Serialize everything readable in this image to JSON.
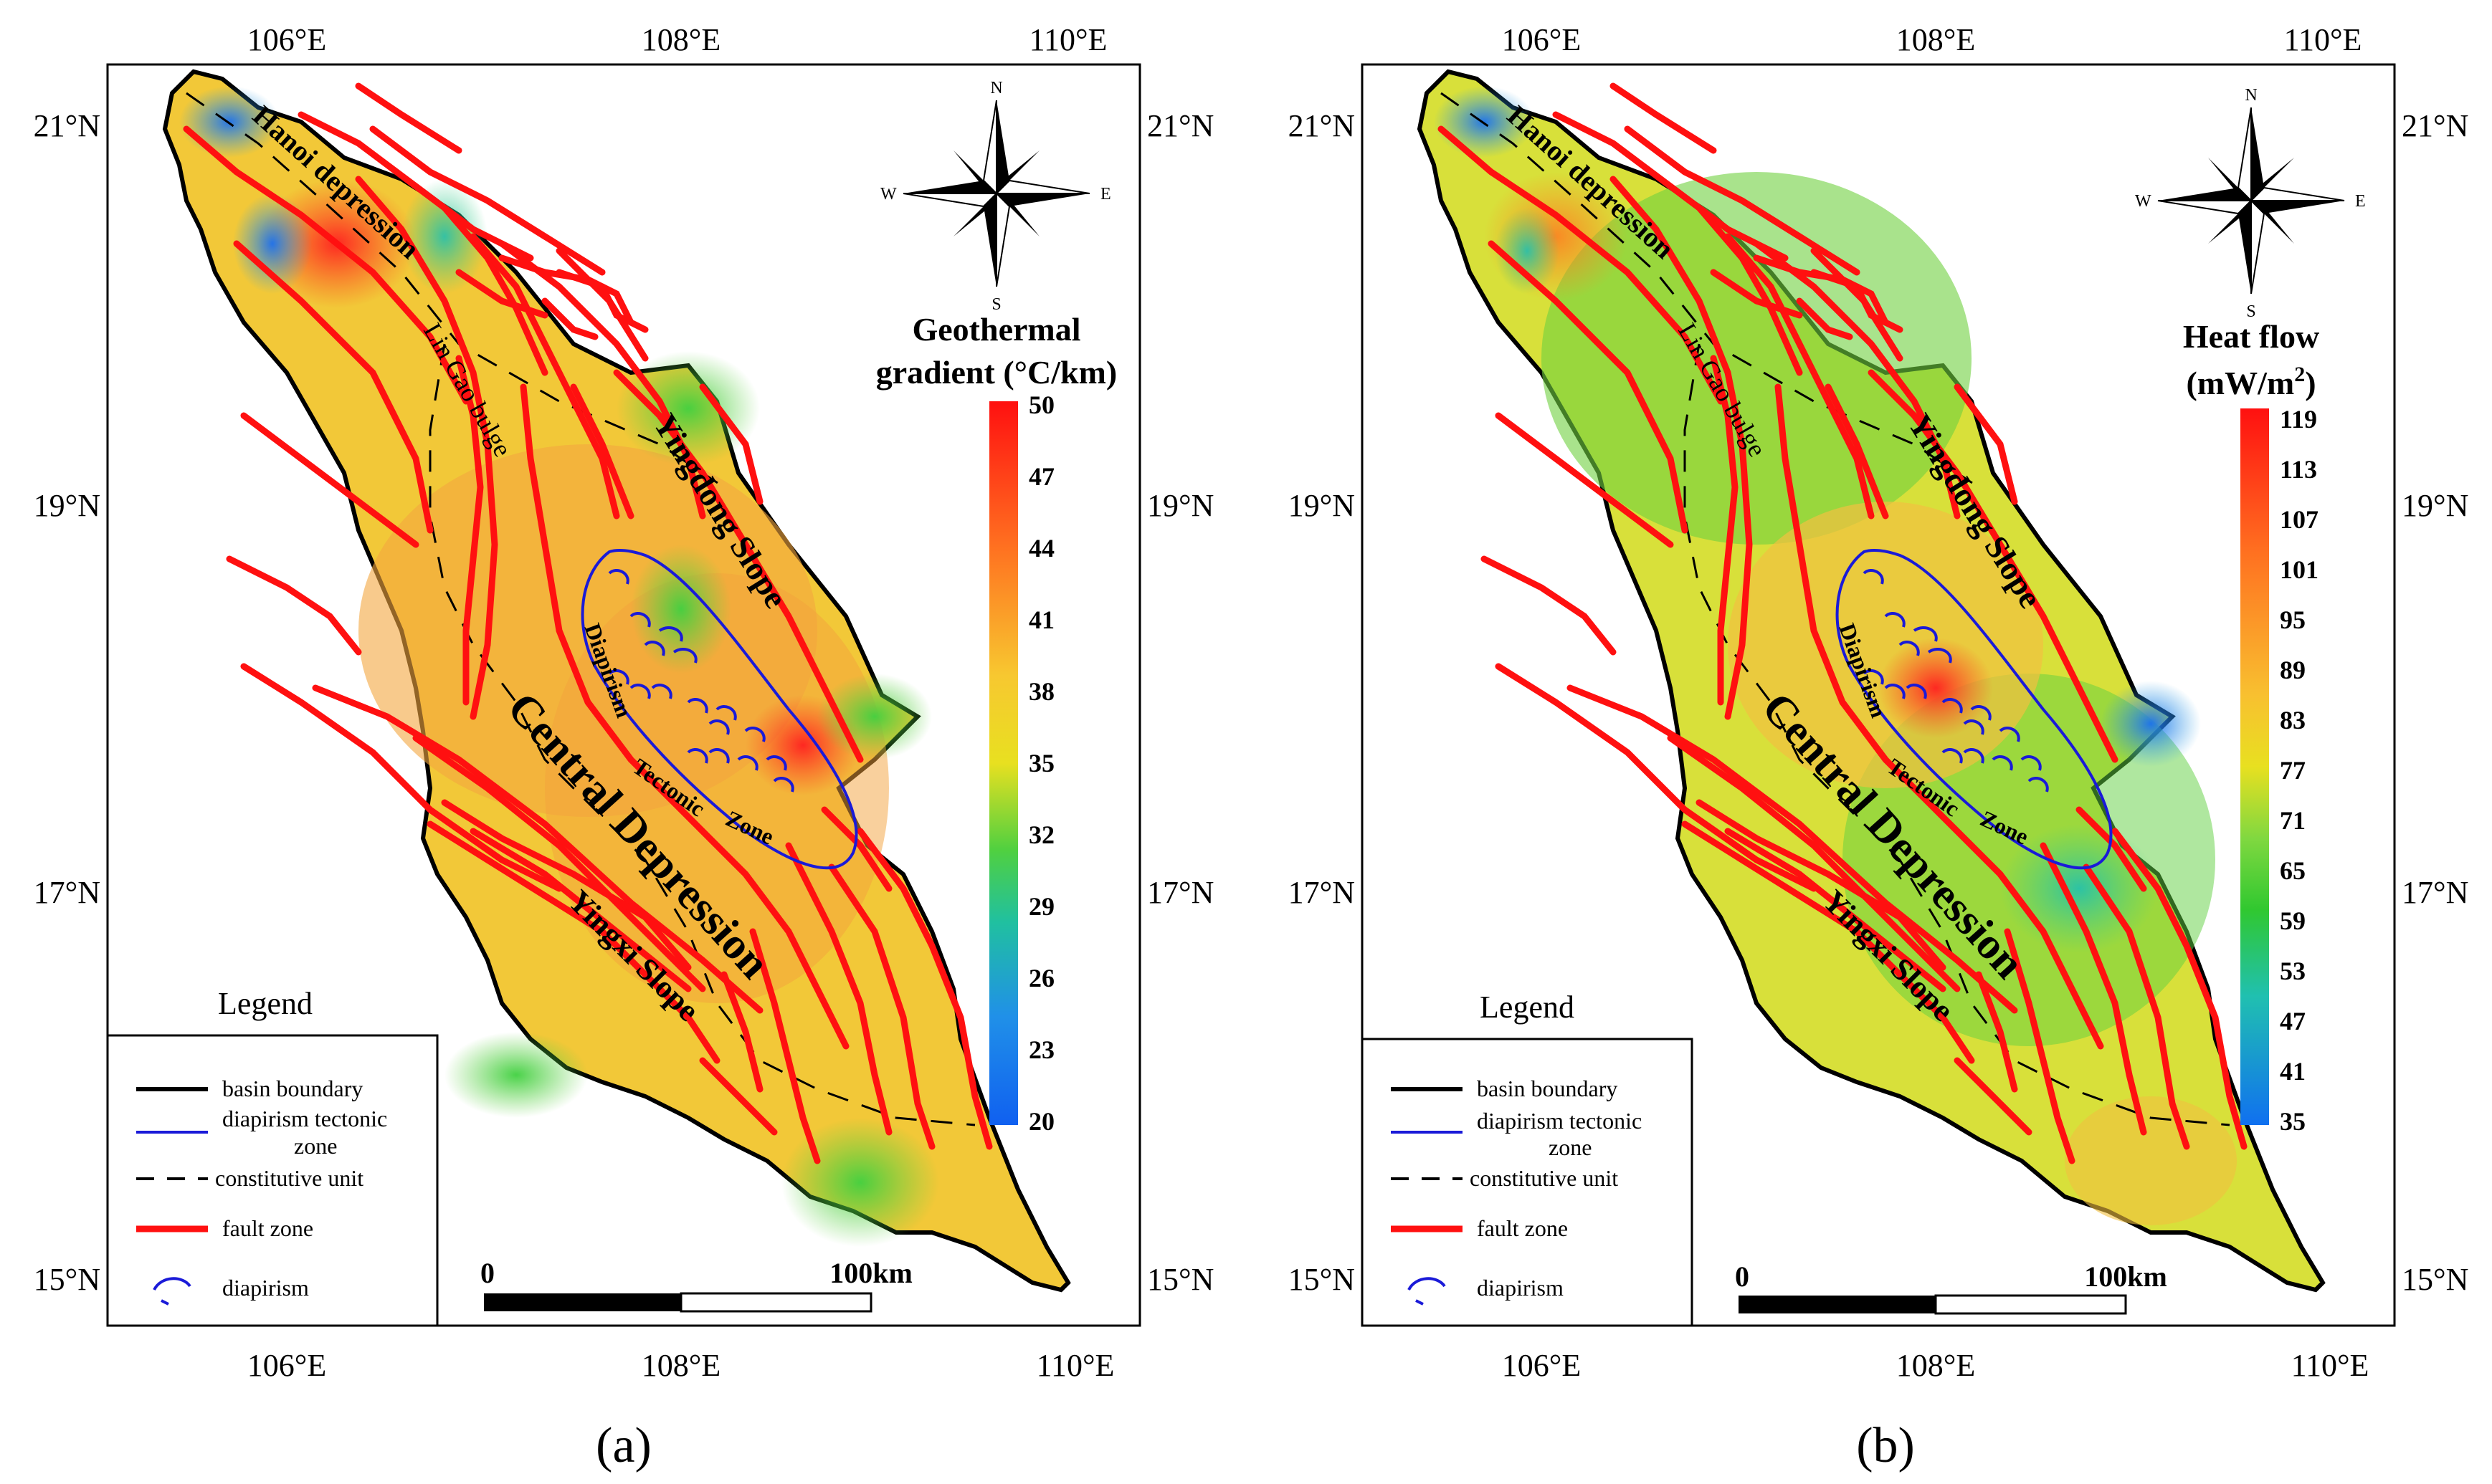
{
  "panels": [
    {
      "id": "a",
      "caption": "(a)",
      "colorbar": {
        "title_line1": "Geothermal",
        "title_line2": "gradient (°C/km)",
        "ticks": [
          "50",
          "47",
          "44",
          "41",
          "38",
          "35",
          "32",
          "29",
          "26",
          "23",
          "20"
        ]
      }
    },
    {
      "id": "b",
      "caption": "(b)",
      "colorbar": {
        "title_line1": "Heat flow",
        "title_line2": "(mW/m",
        "title_sup": "2",
        "title_end": ")",
        "ticks": [
          "119",
          "113",
          "107",
          "101",
          "95",
          "89",
          "83",
          "77",
          "71",
          "65",
          "59",
          "53",
          "47",
          "41",
          "35"
        ]
      }
    }
  ],
  "axes": {
    "lon_ticks": [
      "106°E",
      "108°E",
      "110°E"
    ],
    "lat_ticks": [
      "21°N",
      "19°N",
      "17°N",
      "15°N"
    ]
  },
  "compass": {
    "n": "N",
    "s": "S",
    "e": "E",
    "w": "W"
  },
  "labels": {
    "hanoi": "Hanoi depression",
    "lincao": "Lin Gao bulge",
    "yingdong": "Yingdong Slope",
    "central": "Central Depression",
    "yingxi": "Yingxi Slope",
    "diapirism": "Diapirism",
    "tectonic": "Tectonic",
    "zone": "Zone"
  },
  "legend": {
    "title": "Legend",
    "items": [
      {
        "label": "basin boundary"
      },
      {
        "label": "diapirism tectonic",
        "label2": "zone"
      },
      {
        "label": "constitutive unit"
      },
      {
        "label": "fault zone"
      },
      {
        "label": "diapirism"
      }
    ]
  },
  "scalebar": {
    "start": "0",
    "end": "100km"
  },
  "colors": {
    "fault": "#ff1010",
    "diapir": "#1a1ad8",
    "boundary": "#000000"
  }
}
